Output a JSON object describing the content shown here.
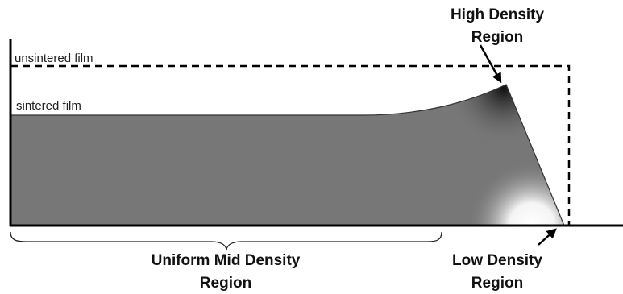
{
  "labels": {
    "unsintered": "unsintered film",
    "sintered": "sintered film",
    "high_density": [
      "High Density",
      "Region"
    ],
    "uniform": [
      "Uniform Mid Density",
      "Region"
    ],
    "low_density": [
      "Low Density",
      "Region"
    ]
  }
}
